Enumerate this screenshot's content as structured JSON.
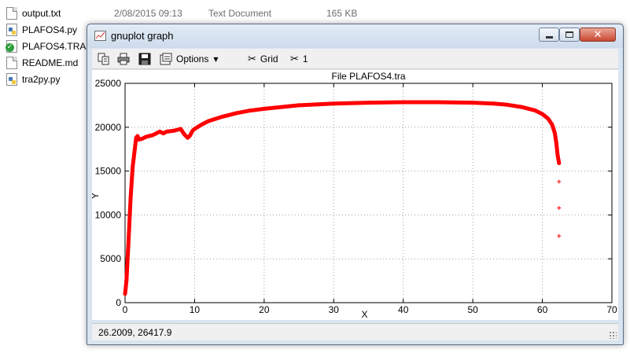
{
  "explorer": {
    "files": [
      {
        "name": "output.txt",
        "icon": "text-file-icon",
        "date": "2/08/2015 09:13",
        "type": "Text Document",
        "size": "165 KB"
      },
      {
        "name": "PLAFOS4.py",
        "icon": "python-file-icon",
        "date": "",
        "type": "",
        "size": ""
      },
      {
        "name": "PLAFOS4.TRA",
        "icon": "tra-file-icon",
        "date": "",
        "type": "",
        "size": ""
      },
      {
        "name": "README.md",
        "icon": "text-file-icon",
        "date": "",
        "type": "",
        "size": ""
      },
      {
        "name": "tra2py.py",
        "icon": "python-file-icon",
        "date": "",
        "type": "",
        "size": ""
      }
    ]
  },
  "window": {
    "title": "gnuplot graph",
    "close_glyph": "✕"
  },
  "toolbar": {
    "options_label": "Options",
    "grid_label": "Grid",
    "one_label": "1"
  },
  "status": {
    "text": "26.2009,  26417.9"
  },
  "chart_data": {
    "type": "scatter",
    "title": "File PLAFOS4.tra",
    "xlabel": "X",
    "ylabel": "Y",
    "xlim": [
      0,
      70
    ],
    "ylim": [
      0,
      25000
    ],
    "xticks": [
      0,
      10,
      20,
      30,
      40,
      50,
      60,
      70
    ],
    "yticks": [
      0,
      5000,
      10000,
      15000,
      20000,
      25000
    ],
    "grid": true,
    "color": "#ff0000",
    "series": [
      {
        "marker": "+",
        "x": [
          0.0,
          0.2,
          0.5,
          0.8,
          1.1,
          1.4,
          1.6,
          1.8,
          2.0,
          2.5,
          3.0,
          4.0,
          5.0,
          5.5,
          6.0,
          7.0,
          8.0,
          8.5,
          9.0,
          9.3,
          9.7,
          10.0,
          11.0,
          12.0,
          14.0,
          16.0,
          18.0,
          20.0,
          25.0,
          30.0,
          35.0,
          40.0,
          45.0,
          50.0,
          53.0,
          55.0,
          57.0,
          59.0,
          60.0,
          60.8,
          61.4,
          61.8,
          62.0,
          62.2,
          62.4,
          62.4,
          62.4,
          62.4
        ],
        "y": [
          1000,
          2500,
          7000,
          12000,
          15500,
          17500,
          18800,
          19000,
          18600,
          18700,
          18900,
          19100,
          19500,
          19300,
          19500,
          19600,
          19800,
          19200,
          18800,
          19000,
          19600,
          19800,
          20300,
          20700,
          21200,
          21600,
          21900,
          22100,
          22500,
          22700,
          22800,
          22850,
          22850,
          22800,
          22700,
          22550,
          22300,
          21900,
          21500,
          21000,
          20300,
          19300,
          18200,
          16800,
          15900,
          13800,
          10800,
          7600
        ]
      }
    ]
  }
}
